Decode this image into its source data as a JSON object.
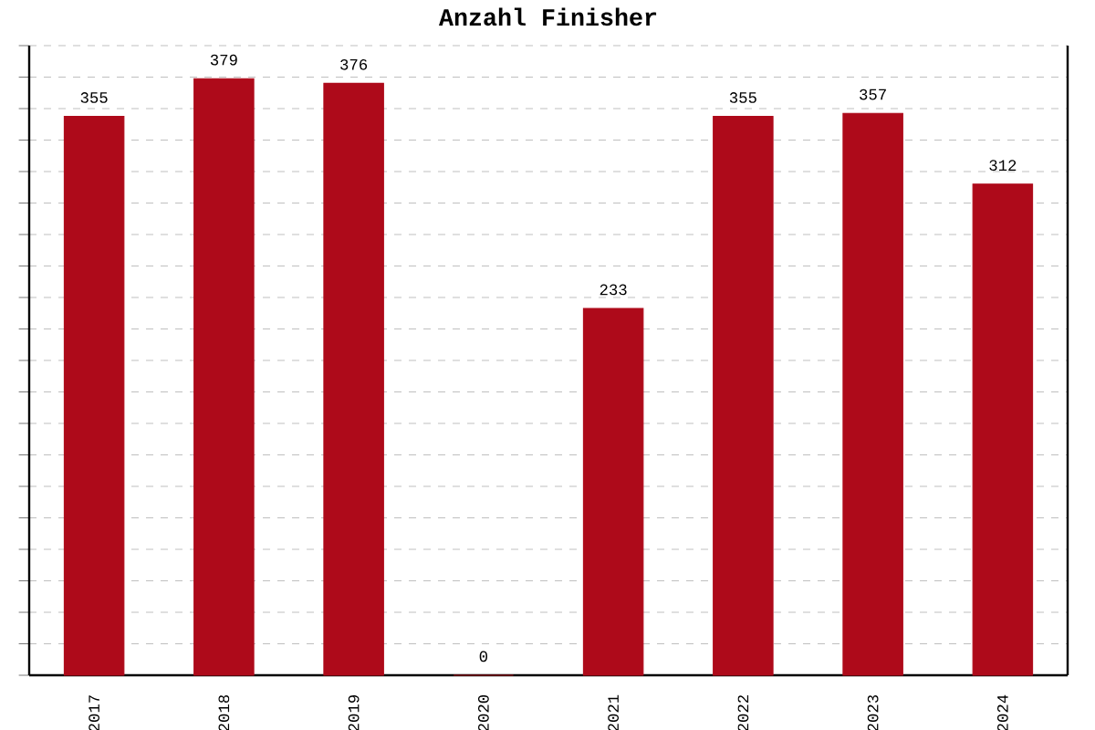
{
  "chart_data": {
    "type": "bar",
    "title": "Anzahl Finisher",
    "categories": [
      "2017",
      "2018",
      "2019",
      "2020",
      "2021",
      "2022",
      "2023",
      "2024"
    ],
    "values": [
      355,
      379,
      376,
      0,
      233,
      355,
      357,
      312
    ],
    "color": "#ae0a1a",
    "data_labels": true,
    "ylim": [
      0,
      400
    ],
    "yticks": [
      {
        "value": 0,
        "label": null
      },
      {
        "value": 20,
        "label": null
      },
      {
        "value": 40,
        "label": null
      },
      {
        "value": 60,
        "label": null
      },
      {
        "value": 80,
        "label": null
      },
      {
        "value": 100,
        "label": null
      },
      {
        "value": 120,
        "label": null
      },
      {
        "value": 140,
        "label": null
      },
      {
        "value": 160,
        "label": null
      },
      {
        "value": 180,
        "label": null
      },
      {
        "value": 200,
        "label": null
      },
      {
        "value": 220,
        "label": null
      },
      {
        "value": 240,
        "label": null
      },
      {
        "value": 260,
        "label": null
      },
      {
        "value": 280,
        "label": null
      },
      {
        "value": 300,
        "label": null
      },
      {
        "value": 320,
        "label": null
      },
      {
        "value": 340,
        "label": null
      },
      {
        "value": 360,
        "label": null
      },
      {
        "value": 380,
        "label": null
      },
      {
        "value": 400,
        "label": null
      }
    ],
    "tick_labels": "x",
    "grid": "y"
  }
}
